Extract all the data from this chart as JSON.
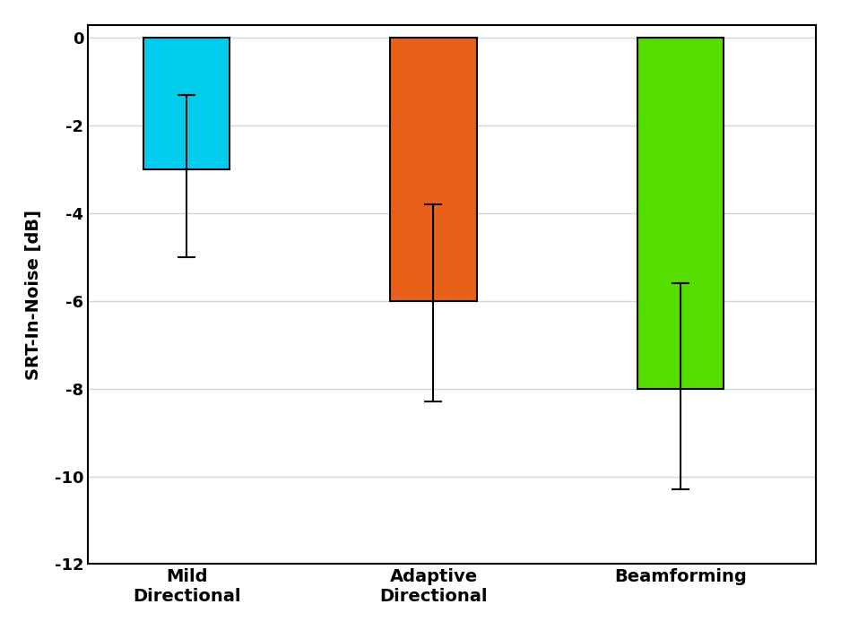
{
  "categories": [
    "Mild\nDirectional",
    "Adaptive\nDirectional",
    "Beamforming"
  ],
  "bar_bottoms": [
    -3.0,
    -6.0,
    -8.0
  ],
  "bar_tops": [
    0,
    0,
    0
  ],
  "bar_colors": [
    "#00CCEE",
    "#E8601A",
    "#55DD00"
  ],
  "bar_edge_colors": [
    "#000000",
    "#000000",
    "#000000"
  ],
  "error_centers": [
    -1.5,
    -4.0,
    -5.8
  ],
  "error_lower": [
    3.5,
    4.3,
    4.5
  ],
  "error_upper": [
    0.2,
    0.2,
    0.2
  ],
  "ylabel": "SRT-In-Noise [dB]",
  "ylim": [
    -12,
    0.3
  ],
  "yticks": [
    0,
    -2,
    -4,
    -6,
    -8,
    -10,
    -12
  ],
  "grid_color": "#C8D8E8",
  "background_color": "#FFFFFF",
  "bar_width": 0.35,
  "label_fontsize": 14,
  "tick_fontsize": 13,
  "xlabel_fontsize": 14,
  "capsize": 7,
  "elinewidth": 1.5,
  "capthick": 1.5
}
